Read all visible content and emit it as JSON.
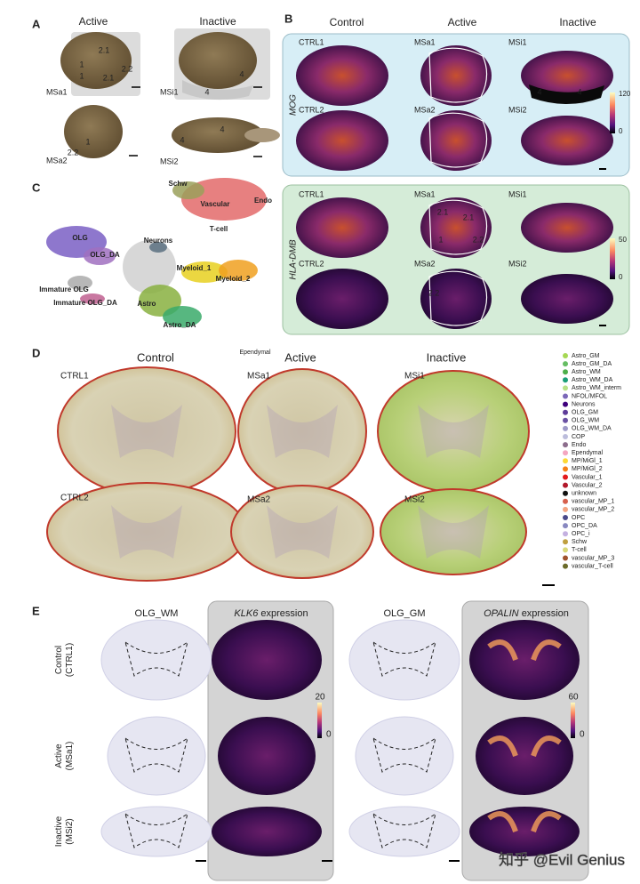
{
  "panel_a": {
    "label": "A",
    "columns": [
      "Active",
      "Inactive"
    ],
    "samples": [
      {
        "name": "MSa1",
        "regions": [
          "2.1",
          "1",
          "1",
          "2.1",
          "2.2"
        ]
      },
      {
        "name": "MSi1",
        "regions": [
          "4",
          "4"
        ]
      },
      {
        "name": "MSa2",
        "regions": [
          "2.2",
          "1"
        ]
      },
      {
        "name": "MSi2",
        "regions": [
          "4",
          "4"
        ]
      }
    ]
  },
  "panel_b": {
    "label": "B",
    "columns": [
      "Control",
      "Active",
      "Inactive"
    ],
    "rows": [
      {
        "gene": "MOG",
        "colorbar": [
          "120",
          "0"
        ],
        "samples": [
          {
            "name": "CTRL1"
          },
          {
            "name": "MSa1"
          },
          {
            "name": "MSi1",
            "regions": [
              "4",
              "4"
            ]
          },
          {
            "name": "CTRL2"
          },
          {
            "name": "MSa2"
          },
          {
            "name": "MSi2"
          }
        ]
      },
      {
        "gene": "HLA-DMB",
        "colorbar": [
          "50",
          "0"
        ],
        "samples": [
          {
            "name": "CTRL1"
          },
          {
            "name": "MSa1",
            "regions": [
              "2.1",
              "2.1",
              "1",
              "2.2"
            ]
          },
          {
            "name": "MSi1"
          },
          {
            "name": "CTRL2"
          },
          {
            "name": "MSa2",
            "regions": [
              "2.2"
            ]
          },
          {
            "name": "MSi2"
          }
        ]
      }
    ]
  },
  "panel_c": {
    "label": "C",
    "clusters": [
      "Schw",
      "Endo",
      "Vascular",
      "T-cell",
      "OLG",
      "Neurons",
      "OLG_DA",
      "Myeloid_1",
      "Myeloid_2",
      "Immature OLG",
      "Immature OLG_DA",
      "Astro",
      "Astro_DA"
    ]
  },
  "panel_d": {
    "label": "D",
    "columns": [
      "Control",
      "Active",
      "Inactive"
    ],
    "annotation": "Ependymal",
    "samples": [
      "CTRL1",
      "MSa1",
      "MSi1",
      "CTRL2",
      "MSa2",
      "MSi2"
    ],
    "legend": [
      {
        "name": "Astro_GM",
        "color": "#a6d854"
      },
      {
        "name": "Astro_GM_DA",
        "color": "#66bd63"
      },
      {
        "name": "Astro_WM",
        "color": "#4daf4a"
      },
      {
        "name": "Astro_WM_DA",
        "color": "#1b9e77"
      },
      {
        "name": "Astro_WM_interm",
        "color": "#b8e186"
      },
      {
        "name": "NFOL/MFOL",
        "color": "#7b68b8"
      },
      {
        "name": "Neurons",
        "color": "#3f007d"
      },
      {
        "name": "OLG_GM",
        "color": "#5e3c99"
      },
      {
        "name": "OLG_WM",
        "color": "#6a51a3"
      },
      {
        "name": "OLG_WM_DA",
        "color": "#9e9ac8"
      },
      {
        "name": "COP",
        "color": "#bcbddc"
      },
      {
        "name": "Endo",
        "color": "#8c6d8c"
      },
      {
        "name": "Ependymal",
        "color": "#f4a6c0"
      },
      {
        "name": "MP/MiGl_1",
        "color": "#fdd835"
      },
      {
        "name": "MP/MiGl_2",
        "color": "#f57f17"
      },
      {
        "name": "Vascular_1",
        "color": "#e31a1c"
      },
      {
        "name": "Vascular_2",
        "color": "#b2182b"
      },
      {
        "name": "unknown",
        "color": "#111111"
      },
      {
        "name": "vascular_MP_1",
        "color": "#d6604d"
      },
      {
        "name": "vascular_MP_2",
        "color": "#f4a582"
      },
      {
        "name": "OPC",
        "color": "#4a4a8a"
      },
      {
        "name": "OPC_DA",
        "color": "#8888c0"
      },
      {
        "name": "OPC_i",
        "color": "#c4b0e0"
      },
      {
        "name": "Schw",
        "color": "#bf9f3f"
      },
      {
        "name": "T-cell",
        "color": "#d9d97a"
      },
      {
        "name": "vascular_MP_3",
        "color": "#a0522d"
      },
      {
        "name": "vascular_T-cell",
        "color": "#6b6b2a"
      }
    ]
  },
  "panel_e": {
    "label": "E",
    "columns": [
      {
        "title": "OLG_WM"
      },
      {
        "gene": "KLK6",
        "text": "expression",
        "colorbar": [
          "20",
          "0"
        ]
      },
      {
        "title": "OLG_GM"
      },
      {
        "gene": "OPALIN",
        "text": "expression",
        "colorbar": [
          "60",
          "0"
        ]
      }
    ],
    "rows": [
      [
        "Control",
        "(CTRL1)"
      ],
      [
        "Active",
        "(MSa1)"
      ],
      [
        "Inactive",
        "(MSi2)"
      ]
    ]
  },
  "watermark": "知乎 @Evil Genius"
}
